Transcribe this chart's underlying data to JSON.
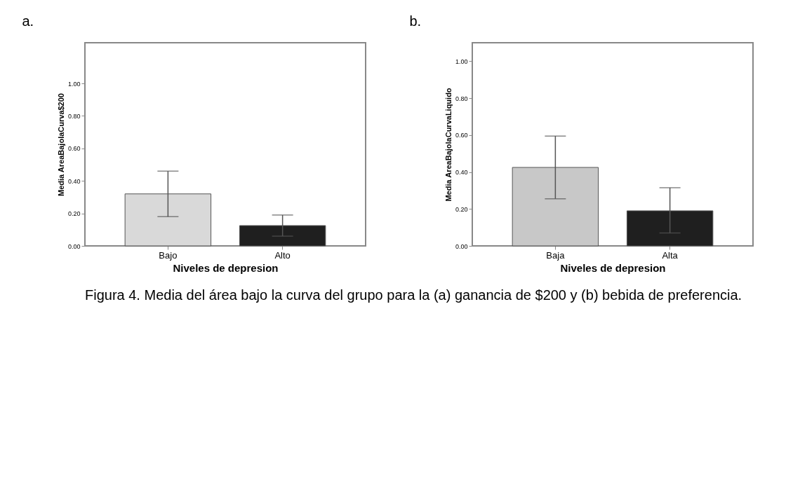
{
  "chart_data": [
    {
      "type": "bar",
      "title": "a.",
      "xlabel": "Niveles de depresion",
      "ylabel": "Media AreaBajolaCurva$200",
      "categories": [
        "Bajo",
        "Alto"
      ],
      "values": [
        0.32,
        0.125
      ],
      "colors": [
        "#d9d9d9",
        "#1f1f1f"
      ],
      "errors": [
        [
          0.18,
          0.46
        ],
        [
          0.06,
          0.19
        ]
      ],
      "ylim": [
        0,
        1.25
      ],
      "yticks": [
        {
          "value": 0,
          "label": "0.00"
        },
        {
          "value": 0.2,
          "label": "0.20"
        },
        {
          "value": 0.4,
          "label": "0.40"
        },
        {
          "value": 0.6,
          "label": "0.60"
        },
        {
          "value": 0.8,
          "label": "0.80"
        },
        {
          "value": 1,
          "label": "1.00"
        }
      ],
      "grid": false,
      "legend": false,
      "annotations": [
        "Figura 4. Media del área bajo la curva del grupo para la (a) ganancia de  $200  y (b) bebida de preferencia."
      ]
    },
    {
      "type": "bar",
      "title": "b.",
      "xlabel": "Niveles de depresion",
      "ylabel": "Media AreaBajolaCurvaLiquido",
      "categories": [
        "Baja",
        "Alta"
      ],
      "values": [
        0.425,
        0.19
      ],
      "colors": [
        "#c8c8c8",
        "#1f1f1f"
      ],
      "errors": [
        [
          0.255,
          0.595
        ],
        [
          0.07,
          0.315
        ]
      ],
      "ylim": [
        0,
        1.1
      ],
      "yticks": [
        {
          "value": 0,
          "label": "0.00"
        },
        {
          "value": 0.2,
          "label": "0.20"
        },
        {
          "value": 0.4,
          "label": "0.40"
        },
        {
          "value": 0.6,
          "label": "0.60"
        },
        {
          "value": 0.8,
          "label": "0.80"
        },
        {
          "value": 1,
          "label": "1.00"
        }
      ],
      "grid": false,
      "legend": false
    }
  ]
}
